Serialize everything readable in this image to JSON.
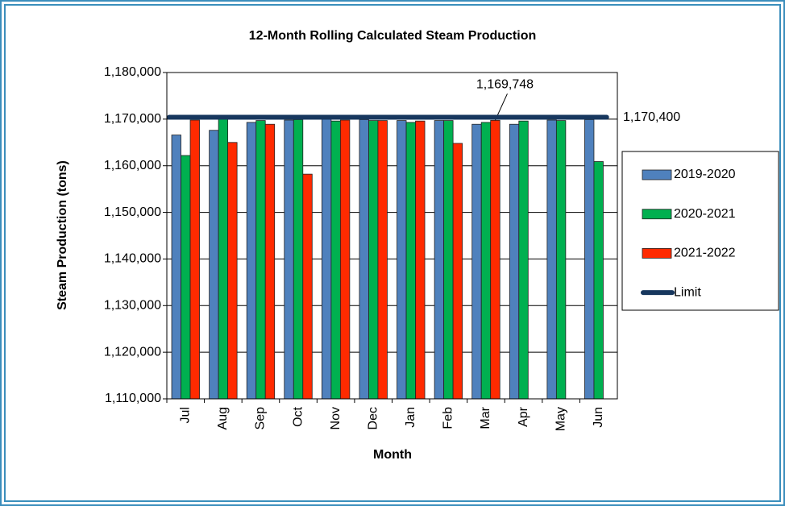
{
  "chart_data": {
    "type": "bar",
    "title": "12-Month Rolling Calculated Steam Production",
    "x_label": "Month",
    "y_label": "Steam Production (tons)",
    "categories": [
      "Jul",
      "Aug",
      "Sep",
      "Oct",
      "Nov",
      "Dec",
      "Jan",
      "Feb",
      "Mar",
      "Apr",
      "May",
      "Jun"
    ],
    "series": [
      {
        "name": "2019-2020",
        "color": "#4f81bd",
        "values": [
          1166600,
          1167600,
          1169300,
          1169800,
          1170000,
          1169900,
          1169700,
          1169700,
          1168900,
          1168900,
          1169800,
          1169900
        ]
      },
      {
        "name": "2020-2021",
        "color": "#00b050",
        "values": [
          1162200,
          1170000,
          1169700,
          1169900,
          1169600,
          1169700,
          1169300,
          1169700,
          1169300,
          1169600,
          1169700,
          1160900
        ]
      },
      {
        "name": "2021-2022",
        "color": "#ff2a00",
        "values": [
          1169800,
          1165000,
          1168900,
          1158200,
          1169800,
          1169700,
          1169600,
          1164800,
          1169748,
          null,
          null,
          null
        ],
        "value_labels": [
          null,
          null,
          null,
          null,
          null,
          null,
          null,
          null,
          "1,169,748",
          null,
          null,
          null
        ]
      }
    ],
    "limit": {
      "name": "Limit",
      "color": "#17375e",
      "value": 1170400,
      "label": "1,170,400"
    },
    "ylim": [
      1110000,
      1180000
    ],
    "yticks": [
      {
        "value": 1110000,
        "label": "1,110,000"
      },
      {
        "value": 1120000,
        "label": "1,120,000"
      },
      {
        "value": 1130000,
        "label": "1,130,000"
      },
      {
        "value": 1140000,
        "label": "1,140,000"
      },
      {
        "value": 1150000,
        "label": "1,150,000"
      },
      {
        "value": 1160000,
        "label": "1,160,000"
      },
      {
        "value": 1170000,
        "label": "1,170,000"
      },
      {
        "value": 1180000,
        "label": "1,180,000"
      }
    ],
    "grid": true,
    "legend": "right"
  }
}
